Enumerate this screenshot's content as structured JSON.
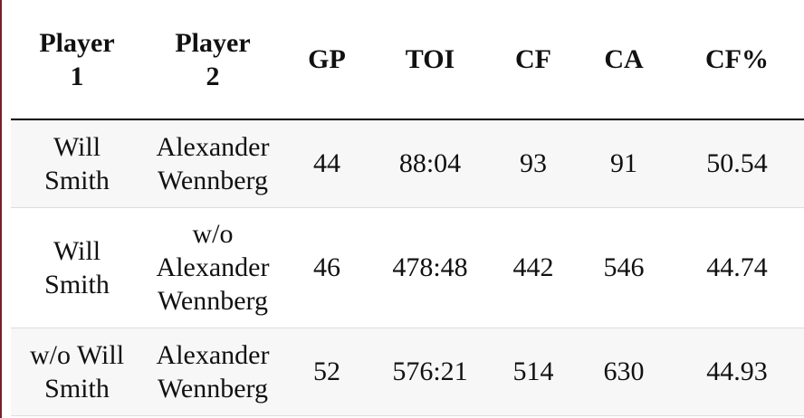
{
  "table": {
    "header": [
      "Player 1",
      "Player 2",
      "GP",
      "TOI",
      "CF",
      "CA",
      "CF%"
    ],
    "rows": [
      [
        "Will Smith",
        "Alexander Wennberg",
        44,
        "88:04",
        93,
        91,
        50.54
      ],
      [
        "Will Smith",
        "w/o Alexander Wennberg",
        46,
        "478:48",
        442,
        546,
        44.74
      ],
      [
        "w/o Will Smith",
        "Alexander Wennberg",
        52,
        "576:21",
        514,
        630,
        44.93
      ]
    ]
  }
}
